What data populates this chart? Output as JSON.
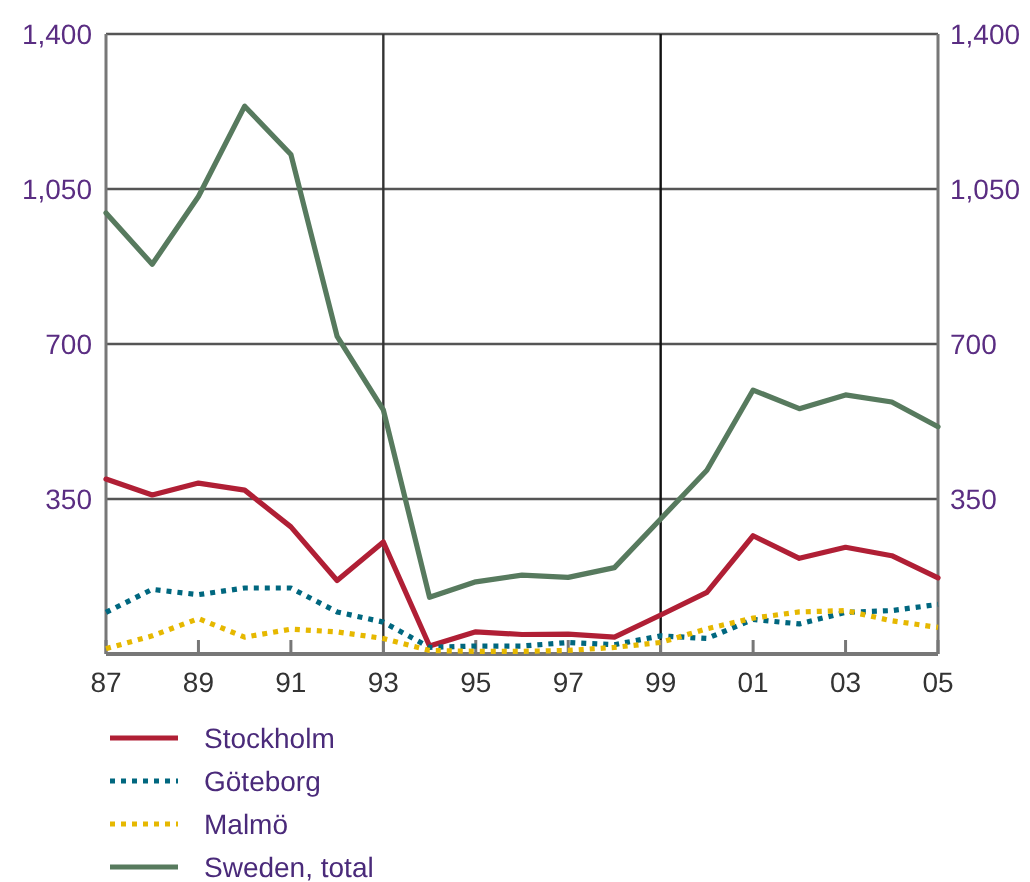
{
  "chart_data": {
    "type": "line",
    "x": [
      1987,
      1988,
      1989,
      1990,
      1991,
      1992,
      1993,
      1994,
      1995,
      1996,
      1997,
      1998,
      1999,
      2000,
      2001,
      2002,
      2003,
      2004,
      2005
    ],
    "series": [
      {
        "name": "Stockholm",
        "color": "#b01f35",
        "line_style": "solid",
        "values": [
          395,
          359,
          386,
          370,
          287,
          166,
          253,
          18,
          50,
          44,
          45,
          38,
          88,
          139,
          267,
          216,
          241,
          222,
          172
        ]
      },
      {
        "name": "Göteborg",
        "color": "#00677f",
        "line_style": "dotted",
        "values": [
          94,
          146,
          134,
          149,
          149,
          95,
          72,
          15,
          18,
          18,
          26,
          21,
          41,
          35,
          78,
          68,
          94,
          98,
          112
        ]
      },
      {
        "name": "Malmö",
        "color": "#e6b800",
        "line_style": "dotted",
        "values": [
          12,
          41,
          80,
          38,
          56,
          50,
          35,
          8,
          6,
          6,
          8,
          15,
          26,
          57,
          81,
          95,
          98,
          75,
          60
        ]
      },
      {
        "name": "Sweden, total",
        "color": "#577a5e",
        "line_style": "solid",
        "values": [
          996,
          880,
          1033,
          1237,
          1128,
          717,
          551,
          128,
          163,
          178,
          173,
          195,
          305,
          415,
          596,
          554,
          585,
          569,
          513
        ]
      }
    ],
    "xlim": [
      1987,
      2005
    ],
    "xticks": [
      {
        "value": 1987,
        "label": "87"
      },
      {
        "value": 1989,
        "label": "89"
      },
      {
        "value": 1991,
        "label": "91"
      },
      {
        "value": 1993,
        "label": "93"
      },
      {
        "value": 1995,
        "label": "95"
      },
      {
        "value": 1997,
        "label": "97"
      },
      {
        "value": 1999,
        "label": "99"
      },
      {
        "value": 2001,
        "label": "01"
      },
      {
        "value": 2003,
        "label": "03"
      },
      {
        "value": 2005,
        "label": "05"
      }
    ],
    "ylim": [
      0,
      1400
    ],
    "yticks": [
      {
        "value": 0,
        "label": null
      },
      {
        "value": 350,
        "label": "350"
      },
      {
        "value": 700,
        "label": "700"
      },
      {
        "value": 1050,
        "label": "1,050"
      },
      {
        "value": 1400,
        "label": "1,400"
      }
    ],
    "y2lim": [
      0,
      1400
    ],
    "y2ticks": [
      {
        "value": 350,
        "label": "350"
      },
      {
        "value": 700,
        "label": "700"
      },
      {
        "value": 1050,
        "label": "1,050"
      },
      {
        "value": 1400,
        "label": "1,400"
      }
    ],
    "ref_lines": [
      {
        "axis": "x",
        "value": 1993,
        "color": "#333333"
      },
      {
        "axis": "x",
        "value": 1999,
        "color": "#111111"
      }
    ],
    "grid": "y",
    "legend": "bottom"
  }
}
